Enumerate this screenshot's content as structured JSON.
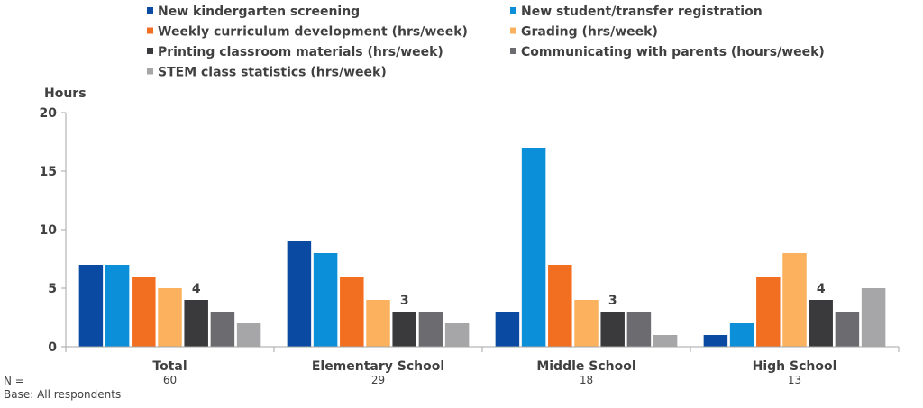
{
  "chart_data": {
    "type": "bar",
    "ylabel": "Hours",
    "ylim": [
      0,
      20
    ],
    "yticks": [
      0,
      5,
      10,
      15,
      20
    ],
    "grid": false,
    "legend_position": "top",
    "categories": [
      "Total",
      "Elementary School",
      "Middle School",
      "High School"
    ],
    "n_label": "N =",
    "n_values": [
      "60",
      "29",
      "18",
      "13"
    ],
    "base_note": "Base: All respondents",
    "series": [
      {
        "name": "New kindergarten screening",
        "color": "#0b4aa2",
        "values": [
          7,
          9,
          3,
          1
        ]
      },
      {
        "name": "New student/transfer registration",
        "color": "#0b8fd8",
        "values": [
          7,
          8,
          17,
          2
        ]
      },
      {
        "name": "Weekly curriculum development (hrs/week)",
        "color": "#f26f21",
        "values": [
          6,
          6,
          7,
          6
        ]
      },
      {
        "name": "Grading (hrs/week)",
        "color": "#fbb15d",
        "values": [
          5,
          4,
          4,
          8
        ]
      },
      {
        "name": "Printing classroom materials (hrs/week)",
        "color": "#3a3a3c",
        "values": [
          4,
          3,
          3,
          4
        ]
      },
      {
        "name": "Communicating with parents (hours/week)",
        "color": "#6c6c70",
        "values": [
          3,
          3,
          3,
          3
        ]
      },
      {
        "name": "STEM class statistics (hrs/week)",
        "color": "#a6a6a8",
        "values": [
          2,
          2,
          1,
          5
        ]
      }
    ],
    "annotations": [
      {
        "category": 0,
        "series": 4,
        "text": "4"
      },
      {
        "category": 1,
        "series": 4,
        "text": "3"
      },
      {
        "category": 2,
        "series": 4,
        "text": "3"
      },
      {
        "category": 3,
        "series": 4,
        "text": "4"
      }
    ]
  }
}
